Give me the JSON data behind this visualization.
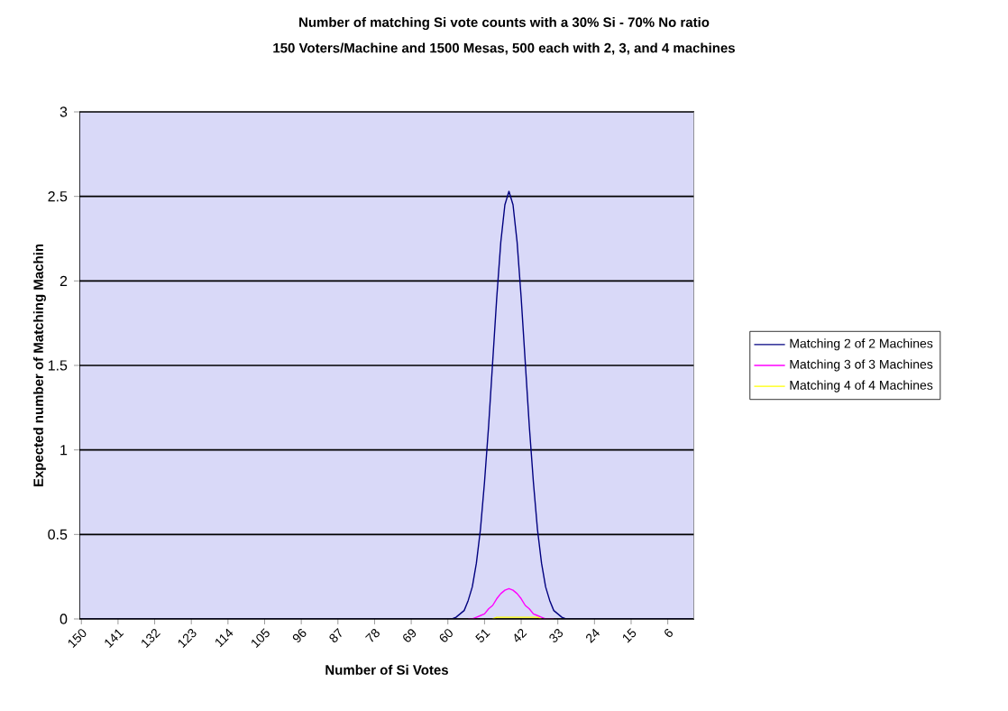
{
  "chart_data": {
    "type": "line",
    "title": "Number of matching Si vote counts with a 30% Si - 70% No ratio",
    "subtitle": "150 Voters/Machine and 1500 Mesas, 500 each with 2, 3, and 4 machines",
    "xlabel": "Number of Si Votes",
    "ylabel": "Expected number of Matching Machin",
    "x": [
      150,
      59,
      58,
      57,
      56,
      55,
      54,
      53,
      52,
      51,
      50,
      49,
      48,
      47,
      46,
      45,
      44,
      43,
      42,
      41,
      40,
      39,
      38,
      37,
      36,
      35,
      34,
      33,
      32,
      31,
      0
    ],
    "series": [
      {
        "name": "Matching 2 of 2 Machines",
        "color": "#000080",
        "values": [
          0,
          0,
          0.01,
          0.03,
          0.05,
          0.11,
          0.19,
          0.33,
          0.53,
          0.81,
          1.14,
          1.52,
          1.9,
          2.23,
          2.45,
          2.53,
          2.45,
          2.23,
          1.9,
          1.52,
          1.14,
          0.81,
          0.53,
          0.33,
          0.19,
          0.11,
          0.05,
          0.03,
          0.01,
          0,
          0
        ]
      },
      {
        "name": "Matching 3 of 3 Machines",
        "color": "#ff00ff",
        "values": [
          null,
          null,
          null,
          null,
          null,
          0,
          0,
          0.01,
          0.02,
          0.03,
          0.06,
          0.08,
          0.12,
          0.15,
          0.17,
          0.18,
          0.17,
          0.15,
          0.12,
          0.08,
          0.06,
          0.03,
          0.02,
          0.01,
          0,
          0,
          0,
          null,
          null,
          null,
          null
        ]
      },
      {
        "name": "Matching 4 of 4 Machines",
        "color": "#ffff00",
        "values": [
          null,
          null,
          null,
          null,
          null,
          null,
          null,
          null,
          null,
          null,
          null,
          0,
          0.01,
          0.01,
          0.01,
          0.01,
          0.01,
          0.01,
          0.01,
          0.01,
          0.01,
          0.01,
          0.01,
          0,
          null,
          null,
          null,
          null,
          null,
          null,
          null
        ]
      }
    ],
    "xlim": [
      150.5,
      -0.5
    ],
    "xticks": [
      150,
      141,
      132,
      123,
      114,
      105,
      96,
      87,
      78,
      69,
      60,
      51,
      42,
      33,
      24,
      15,
      6
    ],
    "ylim": [
      0,
      3
    ],
    "yticks": [
      0,
      0.5,
      1,
      1.5,
      2,
      2.5,
      3
    ],
    "grid": "y",
    "legend": "right"
  }
}
